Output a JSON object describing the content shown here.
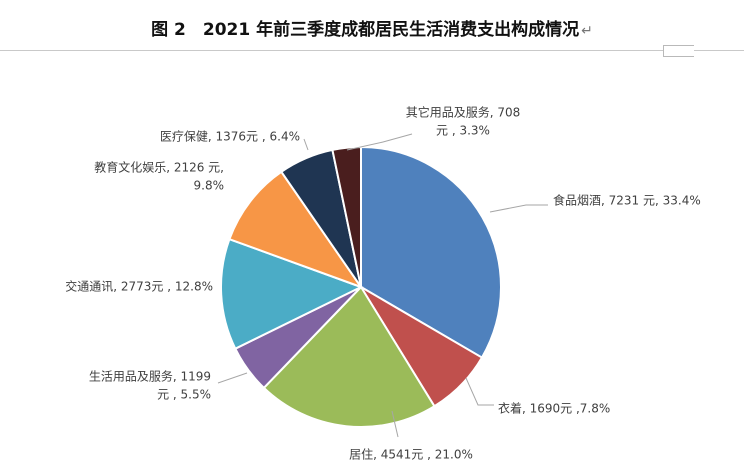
{
  "title": "图 2　2021 年前三季度成都居民生活消费支出构成情况",
  "title_mark": "↵",
  "chart_data": {
    "type": "pie",
    "title": "图 2　2021 年前三季度成都居民生活消费支出构成情况",
    "start_angle_deg": 0,
    "direction": "clockwise",
    "slices": [
      {
        "name": "食品烟酒",
        "value": 7231,
        "percent": 33.4,
        "color": "#4F81BD",
        "label_lines": [
          "食品烟酒, 7231 元, 33.4%"
        ]
      },
      {
        "name": "衣着",
        "value": 1690,
        "percent": 7.8,
        "color": "#C0504D",
        "label_lines": [
          "衣着, 1690元 ,7.8%"
        ]
      },
      {
        "name": "居住",
        "value": 4541,
        "percent": 21.0,
        "color": "#9BBB59",
        "label_lines": [
          "居住, 4541元 , 21.0%"
        ]
      },
      {
        "name": "生活用品及服务",
        "value": 1199,
        "percent": 5.5,
        "color": "#8064A2",
        "label_lines": [
          "生活用品及服务, 1199",
          "元 , 5.5%"
        ]
      },
      {
        "name": "交通通讯",
        "value": 2773,
        "percent": 12.8,
        "color": "#4BACC6",
        "label_lines": [
          "交通通讯, 2773元 , 12.8%"
        ]
      },
      {
        "name": "教育文化娱乐",
        "value": 2126,
        "percent": 9.8,
        "color": "#F79646",
        "label_lines": [
          "教育文化娱乐, 2126 元,",
          "9.8%"
        ]
      },
      {
        "name": "医疗保健",
        "value": 1376,
        "percent": 6.4,
        "color": "#1F3552",
        "label_lines": [
          "医疗保健, 1376元 , 6.4%"
        ]
      },
      {
        "name": "其它用品及服务",
        "value": 708,
        "percent": 3.3,
        "color": "#4A1E1E",
        "label_lines": [
          "其它用品及服务, 708",
          "元 , 3.3%"
        ]
      }
    ]
  }
}
